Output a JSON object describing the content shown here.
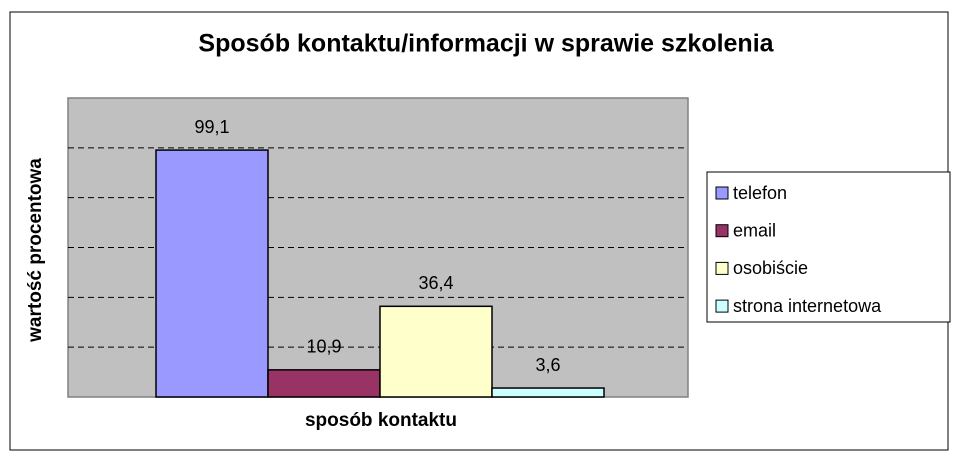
{
  "chart_data": {
    "type": "bar",
    "title": "Sposób kontaktu/informacji w sprawie szkolenia",
    "x_label": "sposób kontaktu",
    "y_label": "wartość procentowa",
    "series": [
      {
        "name": "telefon",
        "color": "#9999ff",
        "values": [
          99.1
        ],
        "value_labels": [
          "99,1"
        ]
      },
      {
        "name": "email",
        "color": "#993366",
        "values": [
          10.9
        ],
        "value_labels": [
          "10,9"
        ]
      },
      {
        "name": "osobiście",
        "color": "#ffffcc",
        "values": [
          36.4
        ],
        "value_labels": [
          "36,4"
        ]
      },
      {
        "name": "strona internetowa",
        "color": "#ccffff",
        "values": [
          3.6
        ],
        "value_labels": [
          "3,6"
        ]
      }
    ],
    "ylim": [
      0,
      120
    ],
    "yticks": [
      0,
      20,
      40,
      60,
      80,
      100,
      120
    ],
    "grid": true,
    "legend": "right"
  }
}
